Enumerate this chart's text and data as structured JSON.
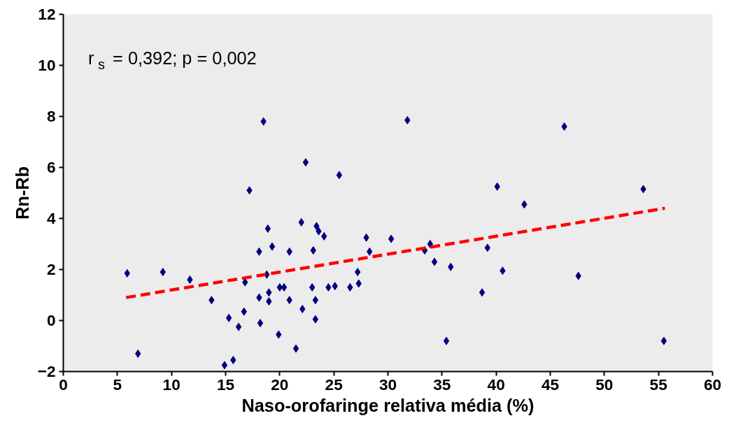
{
  "chart_data": {
    "type": "scatter",
    "xlabel": "Naso-orofaringe relativa média (%)",
    "ylabel": "Rn-Rb",
    "xlim": [
      0,
      60
    ],
    "ylim": [
      -2,
      12
    ],
    "xticks": [
      0,
      5,
      10,
      15,
      20,
      25,
      30,
      35,
      40,
      45,
      50,
      55,
      60
    ],
    "yticks": [
      -2,
      0,
      2,
      4,
      6,
      8,
      10,
      12
    ],
    "grid": false,
    "marker": "diamond",
    "annotations": [
      "r$_{s}$ = 0,392; p = 0,002"
    ],
    "series": [
      {
        "color": "#000080",
        "x": [
          5.9,
          6.9,
          9.2,
          11.7,
          13.7,
          14.9,
          15.3,
          15.7,
          16.2,
          16.7,
          16.8,
          17.2,
          18.1,
          18.2,
          18.1,
          18.5,
          18.8,
          18.9,
          19.0,
          19.0,
          19.3,
          19.9,
          20.0,
          20.4,
          20.9,
          20.9,
          21.5,
          22.0,
          22.1,
          22.4,
          23.0,
          23.1,
          23.3,
          23.3,
          23.4,
          23.6,
          24.1,
          24.5,
          25.1,
          25.5,
          26.5,
          27.2,
          27.3,
          28.0,
          28.3,
          30.3,
          31.8,
          33.4,
          33.9,
          34.3,
          35.4,
          35.8,
          38.7,
          39.2,
          40.1,
          40.6,
          42.6,
          46.3,
          47.6,
          53.6,
          55.5
        ],
        "values": [
          1.85,
          -1.3,
          1.9,
          1.6,
          0.8,
          -1.75,
          0.1,
          -1.55,
          -0.25,
          0.35,
          1.5,
          5.1,
          2.7,
          -0.1,
          0.9,
          7.8,
          1.8,
          3.6,
          1.1,
          0.75,
          2.9,
          -0.55,
          1.3,
          1.3,
          2.7,
          0.8,
          -1.1,
          3.85,
          0.45,
          6.2,
          1.3,
          2.75,
          0.8,
          0.05,
          3.7,
          3.5,
          3.3,
          1.3,
          1.35,
          5.7,
          1.3,
          1.9,
          1.45,
          3.25,
          2.7,
          3.2,
          7.85,
          2.75,
          3.0,
          2.3,
          -0.8,
          2.1,
          1.1,
          2.85,
          5.25,
          1.95,
          4.55,
          7.6,
          1.75,
          5.15,
          -0.8
        ]
      },
      {
        "type": "line",
        "color": "#ff0000",
        "line_style": "dashed",
        "marker": "none",
        "x": [
          5.8,
          55.6
        ],
        "values": [
          0.9,
          4.4
        ]
      }
    ]
  }
}
